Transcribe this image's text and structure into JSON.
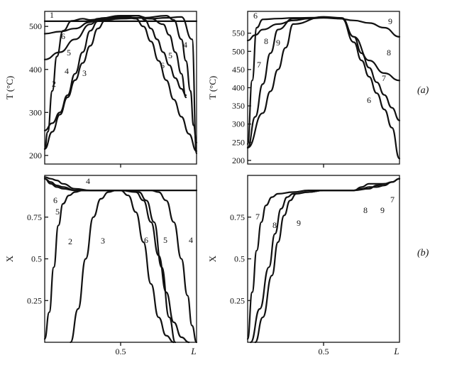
{
  "figure": {
    "panel_labels": [
      "(a)",
      "(b)"
    ]
  },
  "chart_data": [
    {
      "id": "top-left",
      "type": "line",
      "xlabel": "",
      "ylabel": "T (°C)",
      "xlim": [
        0,
        1
      ],
      "ylim": [
        180,
        535
      ],
      "yticks": [
        200,
        300,
        400,
        500
      ],
      "series": [
        {
          "name": "1",
          "x": [
            0,
            0.2,
            0.4,
            0.6,
            0.8,
            1.0
          ],
          "y": [
            512,
            512,
            512,
            512,
            512,
            512
          ]
        },
        {
          "name": "2",
          "x": [
            0,
            0.02,
            0.05,
            0.08,
            0.12,
            0.18,
            0.25,
            0.3,
            0.4,
            0.5,
            0.6,
            0.7,
            0.8,
            0.9,
            0.97,
            1.0
          ],
          "y": [
            215,
            255,
            350,
            430,
            490,
            513,
            518,
            515,
            520,
            522,
            520,
            518,
            520,
            522,
            470,
            205
          ]
        },
        {
          "name": "3",
          "x": [
            0,
            0.05,
            0.1,
            0.15,
            0.2,
            0.25,
            0.3,
            0.35,
            0.4,
            0.45,
            0.5,
            0.55,
            0.6,
            0.65,
            0.7,
            0.75,
            0.8,
            0.85,
            0.9,
            0.95,
            1.0
          ],
          "y": [
            215,
            255,
            295,
            335,
            375,
            415,
            455,
            495,
            515,
            520,
            522,
            520,
            518,
            500,
            465,
            420,
            375,
            330,
            290,
            250,
            210
          ]
        },
        {
          "name": "4",
          "x": [
            0,
            0.05,
            0.1,
            0.15,
            0.2,
            0.25,
            0.3,
            0.35,
            0.5,
            0.65,
            0.8,
            0.85,
            0.9,
            0.93,
            0.96,
            0.98,
            1.0
          ],
          "y": [
            258,
            275,
            300,
            340,
            390,
            440,
            490,
            512,
            518,
            520,
            525,
            515,
            470,
            420,
            350,
            270,
            230
          ]
        },
        {
          "name": "5",
          "x": [
            0,
            0.1,
            0.2,
            0.3,
            0.35,
            0.5,
            0.6,
            0.7,
            0.78,
            0.82,
            0.86,
            0.9,
            0.93
          ],
          "y": [
            423,
            440,
            470,
            505,
            515,
            520,
            525,
            518,
            505,
            480,
            440,
            390,
            335
          ]
        },
        {
          "name": "6",
          "x": [
            0,
            0.1,
            0.2,
            0.3,
            0.35,
            0.5,
            0.62,
            0.66,
            0.7,
            0.74,
            0.78,
            0.82,
            0.86,
            0.9,
            0.93
          ],
          "y": [
            483,
            488,
            495,
            510,
            518,
            525,
            525,
            515,
            495,
            470,
            440,
            410,
            380,
            355,
            340
          ]
        }
      ]
    },
    {
      "id": "top-right",
      "type": "line",
      "xlabel": "",
      "ylabel": "T (°C)",
      "xlim": [
        0,
        1
      ],
      "ylim": [
        190,
        610
      ],
      "yticks": [
        200,
        250,
        300,
        350,
        400,
        450,
        500,
        550
      ],
      "series": [
        {
          "name": "6",
          "x": [
            0,
            0.03,
            0.06,
            0.1,
            0.2,
            0.3,
            0.5,
            0.62,
            0.7,
            0.75,
            0.8,
            0.85,
            0.9,
            0.95,
            1.0
          ],
          "y": [
            245,
            420,
            565,
            588,
            590,
            592,
            593,
            590,
            525,
            475,
            430,
            385,
            340,
            290,
            205
          ]
        },
        {
          "name": "7",
          "x": [
            0,
            0.05,
            0.1,
            0.15,
            0.2,
            0.3,
            0.5,
            0.62,
            0.7,
            0.75,
            0.8,
            0.85,
            0.9,
            0.95,
            1.0
          ],
          "y": [
            235,
            320,
            410,
            495,
            560,
            590,
            593,
            590,
            540,
            495,
            455,
            415,
            380,
            345,
            310
          ]
        },
        {
          "name": "8",
          "x": [
            0,
            0.1,
            0.15,
            0.2,
            0.25,
            0.3,
            0.5,
            0.62,
            0.7,
            0.8,
            0.9,
            1.0
          ],
          "y": [
            235,
            330,
            390,
            450,
            510,
            575,
            595,
            592,
            540,
            475,
            440,
            420
          ]
        },
        {
          "name": "9",
          "x": [
            0,
            0.05,
            0.1,
            0.2,
            0.3,
            0.4,
            0.5,
            0.6,
            0.7,
            0.8,
            0.9,
            1.0
          ],
          "y": [
            530,
            545,
            560,
            575,
            585,
            590,
            592,
            590,
            585,
            578,
            565,
            540
          ]
        }
      ]
    },
    {
      "id": "bottom-left",
      "type": "line",
      "xlabel": "L",
      "ylabel": "X",
      "xlim": [
        0,
        1
      ],
      "ylim": [
        0,
        1.0
      ],
      "xticks": [
        0.5
      ],
      "yticks": [
        0.25,
        0.5,
        0.75
      ],
      "series": [
        {
          "name": "2",
          "x": [
            0,
            0.03,
            0.06,
            0.09,
            0.12,
            0.16,
            0.2,
            0.25,
            0.3,
            0.4,
            0.5,
            0.6,
            0.7,
            0.8,
            0.9,
            1.0
          ],
          "y": [
            0.02,
            0.18,
            0.45,
            0.7,
            0.83,
            0.88,
            0.9,
            0.91,
            0.91,
            0.91,
            0.91,
            0.91,
            0.91,
            0.91,
            0.91,
            0.91
          ]
        },
        {
          "name": "3",
          "x": [
            0.17,
            0.22,
            0.27,
            0.32,
            0.37,
            0.42,
            0.47,
            0.52,
            0.57,
            0.62,
            0.67,
            0.72,
            0.77,
            0.82,
            0.86
          ],
          "y": [
            0,
            0.2,
            0.5,
            0.75,
            0.86,
            0.9,
            0.91,
            0.91,
            0.91,
            0.9,
            0.85,
            0.72,
            0.45,
            0.15,
            0
          ]
        },
        {
          "name": "4",
          "x": [
            0,
            0.04,
            0.08,
            0.12,
            0.2,
            0.3,
            0.4,
            0.5,
            0.6,
            0.7,
            0.75,
            0.8,
            0.85,
            0.9,
            0.94,
            0.97,
            1.0
          ],
          "y": [
            0.99,
            0.98,
            0.97,
            0.95,
            0.92,
            0.91,
            0.91,
            0.91,
            0.91,
            0.91,
            0.9,
            0.85,
            0.72,
            0.5,
            0.28,
            0.1,
            0
          ]
        },
        {
          "name": "5",
          "x": [
            0,
            0.04,
            0.08,
            0.12,
            0.2,
            0.3,
            0.4,
            0.5,
            0.6,
            0.65,
            0.7,
            0.75,
            0.8,
            0.85,
            0.9,
            0.95
          ],
          "y": [
            0.98,
            0.96,
            0.94,
            0.93,
            0.91,
            0.91,
            0.91,
            0.91,
            0.9,
            0.85,
            0.72,
            0.52,
            0.3,
            0.12,
            0.03,
            0
          ]
        },
        {
          "name": "6",
          "x": [
            0,
            0.04,
            0.08,
            0.12,
            0.2,
            0.3,
            0.4,
            0.5,
            0.55,
            0.6,
            0.65,
            0.7,
            0.75,
            0.8,
            0.85
          ],
          "y": [
            0.98,
            0.95,
            0.93,
            0.92,
            0.91,
            0.91,
            0.91,
            0.91,
            0.88,
            0.78,
            0.6,
            0.35,
            0.15,
            0.04,
            0
          ]
        }
      ]
    },
    {
      "id": "bottom-right",
      "type": "line",
      "xlabel": "L",
      "ylabel": "X",
      "xlim": [
        0,
        1
      ],
      "ylim": [
        0,
        1.0
      ],
      "xticks": [
        0.5
      ],
      "yticks": [
        0.25,
        0.5,
        0.75
      ],
      "series": [
        {
          "name": "7",
          "x": [
            0,
            0.03,
            0.06,
            0.09,
            0.12,
            0.16,
            0.2,
            0.3,
            0.4,
            0.5,
            0.6,
            0.7,
            0.8,
            0.85,
            0.9,
            0.95,
            1.0
          ],
          "y": [
            0.02,
            0.3,
            0.55,
            0.72,
            0.82,
            0.87,
            0.89,
            0.9,
            0.91,
            0.91,
            0.91,
            0.91,
            0.92,
            0.94,
            0.95,
            0.96,
            0.98
          ]
        },
        {
          "name": "8",
          "x": [
            0.02,
            0.08,
            0.14,
            0.18,
            0.22,
            0.26,
            0.3,
            0.4,
            0.5,
            0.6,
            0.7,
            0.75,
            0.8,
            0.85,
            0.9,
            0.95,
            1.0
          ],
          "y": [
            0,
            0.2,
            0.45,
            0.65,
            0.8,
            0.87,
            0.89,
            0.9,
            0.91,
            0.91,
            0.91,
            0.93,
            0.95,
            0.95,
            0.95,
            0.96,
            0.98
          ]
        },
        {
          "name": "9",
          "x": [
            0.05,
            0.1,
            0.16,
            0.2,
            0.24,
            0.28,
            0.32,
            0.4,
            0.5,
            0.6,
            0.7,
            0.75,
            0.8,
            0.85,
            0.9,
            0.95,
            1.0
          ],
          "y": [
            0,
            0.15,
            0.4,
            0.6,
            0.76,
            0.85,
            0.89,
            0.9,
            0.91,
            0.91,
            0.91,
            0.92,
            0.93,
            0.93,
            0.94,
            0.96,
            0.98
          ]
        }
      ]
    }
  ]
}
